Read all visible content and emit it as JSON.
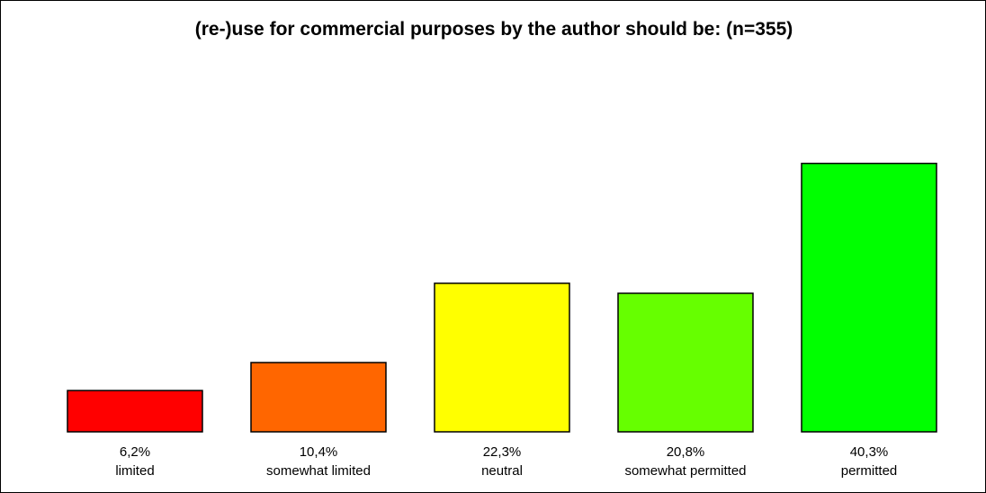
{
  "chart_data": {
    "type": "bar",
    "title": "(re-)use for commercial purposes by the author should be: (n=355)",
    "categories": [
      "limited",
      "somewhat limited",
      "neutral",
      "somewhat permitted",
      "permitted"
    ],
    "values": [
      6.2,
      10.4,
      22.3,
      20.8,
      40.3
    ],
    "value_labels": [
      "6,2%",
      "10,4%",
      "22,3%",
      "20,8%",
      "40,3%"
    ],
    "colors": [
      "#ff0000",
      "#ff6600",
      "#ffff00",
      "#66ff00",
      "#00ff00"
    ],
    "ylim": [
      0,
      52
    ],
    "xlabel": "",
    "ylabel": "",
    "grid": false,
    "legend": "none"
  }
}
